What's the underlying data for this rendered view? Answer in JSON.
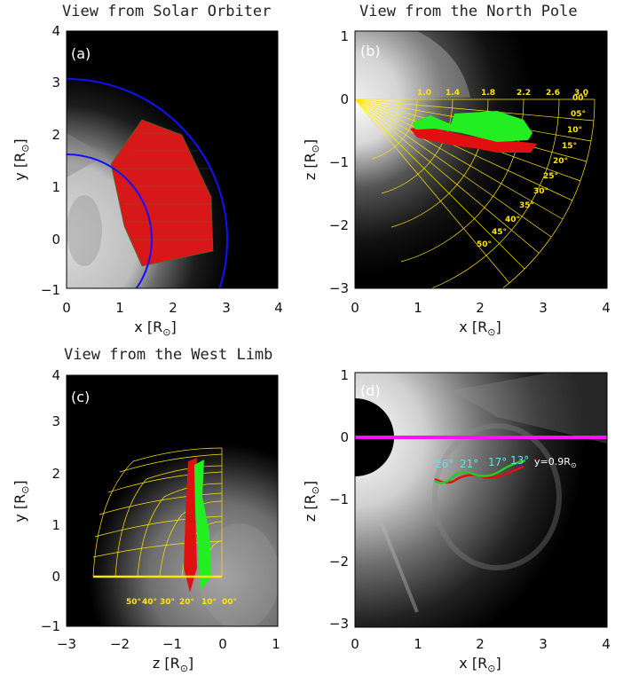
{
  "panels": {
    "a": {
      "title": "View from Solar Orbiter",
      "label": "(a)",
      "xlabel": "x [R",
      "ylabel": "y [R",
      "unit_sub": "⊙",
      "xticks": [
        "0",
        "1",
        "2",
        "3",
        "4"
      ],
      "yticks": [
        "4",
        "3",
        "2",
        "1",
        "0",
        "−1"
      ]
    },
    "b": {
      "title": "View from the North Pole",
      "label": "(b)",
      "xlabel": "x [R",
      "ylabel": "z [R",
      "unit_sub": "⊙",
      "xticks": [
        "0",
        "1",
        "2",
        "3",
        "4"
      ],
      "yticks": [
        "1",
        "0",
        "−1",
        "−2",
        "−3"
      ],
      "grid_radii": [
        "1.0",
        "1.4",
        "1.8",
        "2.2",
        "2.6",
        "3.0"
      ],
      "grid_angles": [
        "00°",
        "05°",
        "10°",
        "15°",
        "20°",
        "25°",
        "30°",
        "35°",
        "40°",
        "45°",
        "50°"
      ]
    },
    "c": {
      "title": "View from the West Limb",
      "label": "(c)",
      "xlabel": "z [R",
      "ylabel": "y [R",
      "unit_sub": "⊙",
      "xticks": [
        "−3",
        "−2",
        "−1",
        "0",
        "1"
      ],
      "yticks": [
        "4",
        "3",
        "2",
        "1",
        "0",
        "−1"
      ],
      "grid_angles": [
        "50°",
        "40°",
        "30°",
        "20°",
        "10°",
        "00°"
      ]
    },
    "d": {
      "label": "(d)",
      "xlabel": "x [R",
      "ylabel": "z [R",
      "unit_sub": "⊙",
      "xticks": [
        "0",
        "1",
        "2",
        "3",
        "4"
      ],
      "yticks": [
        "1",
        "0",
        "−1",
        "−2",
        "−3"
      ],
      "angle_labels": [
        "26°",
        "21°",
        "17°",
        "13°"
      ],
      "height_label": "y=0.9R",
      "height_sub": "⊙"
    }
  },
  "colors": {
    "footprint_red": "#e01010",
    "footprint_green": "#22ee22",
    "grid_yellow": "#ffe600",
    "circle_blue": "#1010ff",
    "plane_magenta": "#ff10ff",
    "angle_cyan": "#5fe0e8"
  }
}
